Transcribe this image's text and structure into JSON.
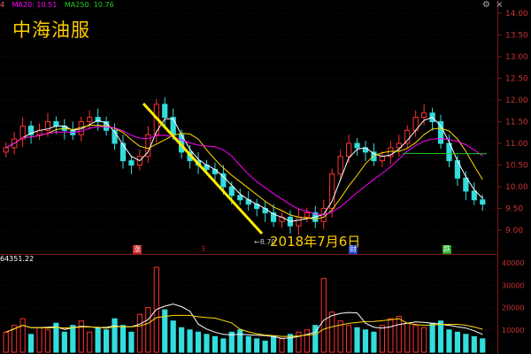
{
  "legend": {
    "prefix": "4",
    "ma20": "MA20: 10.51",
    "ma250": "MA250: 10.76",
    "colors": {
      "prefix": "#ff6666",
      "ma20": "#ff00ff",
      "ma250": "#22cc22"
    }
  },
  "title": "中海油服",
  "annotations": {
    "date": "2018年7月6日",
    "low_label": "8.70"
  },
  "markers": [
    {
      "text": "涨",
      "color": "#cc2222"
    },
    {
      "text": "3",
      "color": "#cc2222"
    },
    {
      "text": "财",
      "color": "#2244cc"
    },
    {
      "text": "跌",
      "color": "#22aa22"
    }
  ],
  "volume_label": "64351.22",
  "icons": [
    "settings-icon",
    "close-icon"
  ],
  "chart_data": [
    {
      "type": "line",
      "title": "",
      "price_axis": [
        "14.00",
        "13.50",
        "13.00",
        "12.50",
        "12.00",
        "11.50",
        "11.00",
        "10.50",
        "10.00",
        "9.50",
        "9.00"
      ],
      "ylim": [
        8.7,
        14.1
      ],
      "close": [
        10.9,
        11.1,
        11.4,
        11.2,
        11.3,
        11.5,
        11.4,
        11.3,
        11.2,
        11.5,
        11.6,
        11.5,
        11.3,
        11.0,
        10.6,
        10.5,
        10.7,
        11.2,
        11.9,
        11.6,
        11.2,
        10.8,
        10.6,
        10.5,
        10.4,
        10.3,
        10.0,
        9.8,
        9.7,
        9.6,
        9.5,
        9.4,
        9.2,
        9.3,
        9.1,
        9.3,
        9.4,
        9.2,
        9.5,
        10.3,
        10.7,
        11.0,
        10.9,
        10.8,
        10.6,
        10.7,
        10.9,
        11.0,
        11.3,
        11.6,
        11.7,
        11.5,
        11.0,
        10.6,
        10.2,
        9.9,
        9.7,
        9.6
      ],
      "trendline_from_high": "11.95",
      "trendline_to_low": "8.70"
    },
    {
      "type": "bar",
      "title": "",
      "volume_axis": [
        "40000",
        "30000",
        "20000",
        "10000"
      ],
      "ylim": [
        0,
        42000
      ],
      "values": [
        9000,
        12000,
        15000,
        8000,
        11000,
        10000,
        13000,
        9000,
        12000,
        14000,
        9000,
        11000,
        10000,
        15000,
        12000,
        9000,
        17000,
        20000,
        38000,
        19000,
        14000,
        11000,
        10000,
        9000,
        8000,
        7000,
        6000,
        9000,
        10000,
        7000,
        6000,
        5000,
        7000,
        6000,
        8000,
        9000,
        10000,
        12000,
        33000,
        18000,
        14000,
        12000,
        11000,
        10000,
        9000,
        12000,
        15000,
        16000,
        13000,
        12000,
        11000,
        13000,
        14000,
        10000,
        9000,
        8000,
        7000,
        6000
      ]
    }
  ]
}
